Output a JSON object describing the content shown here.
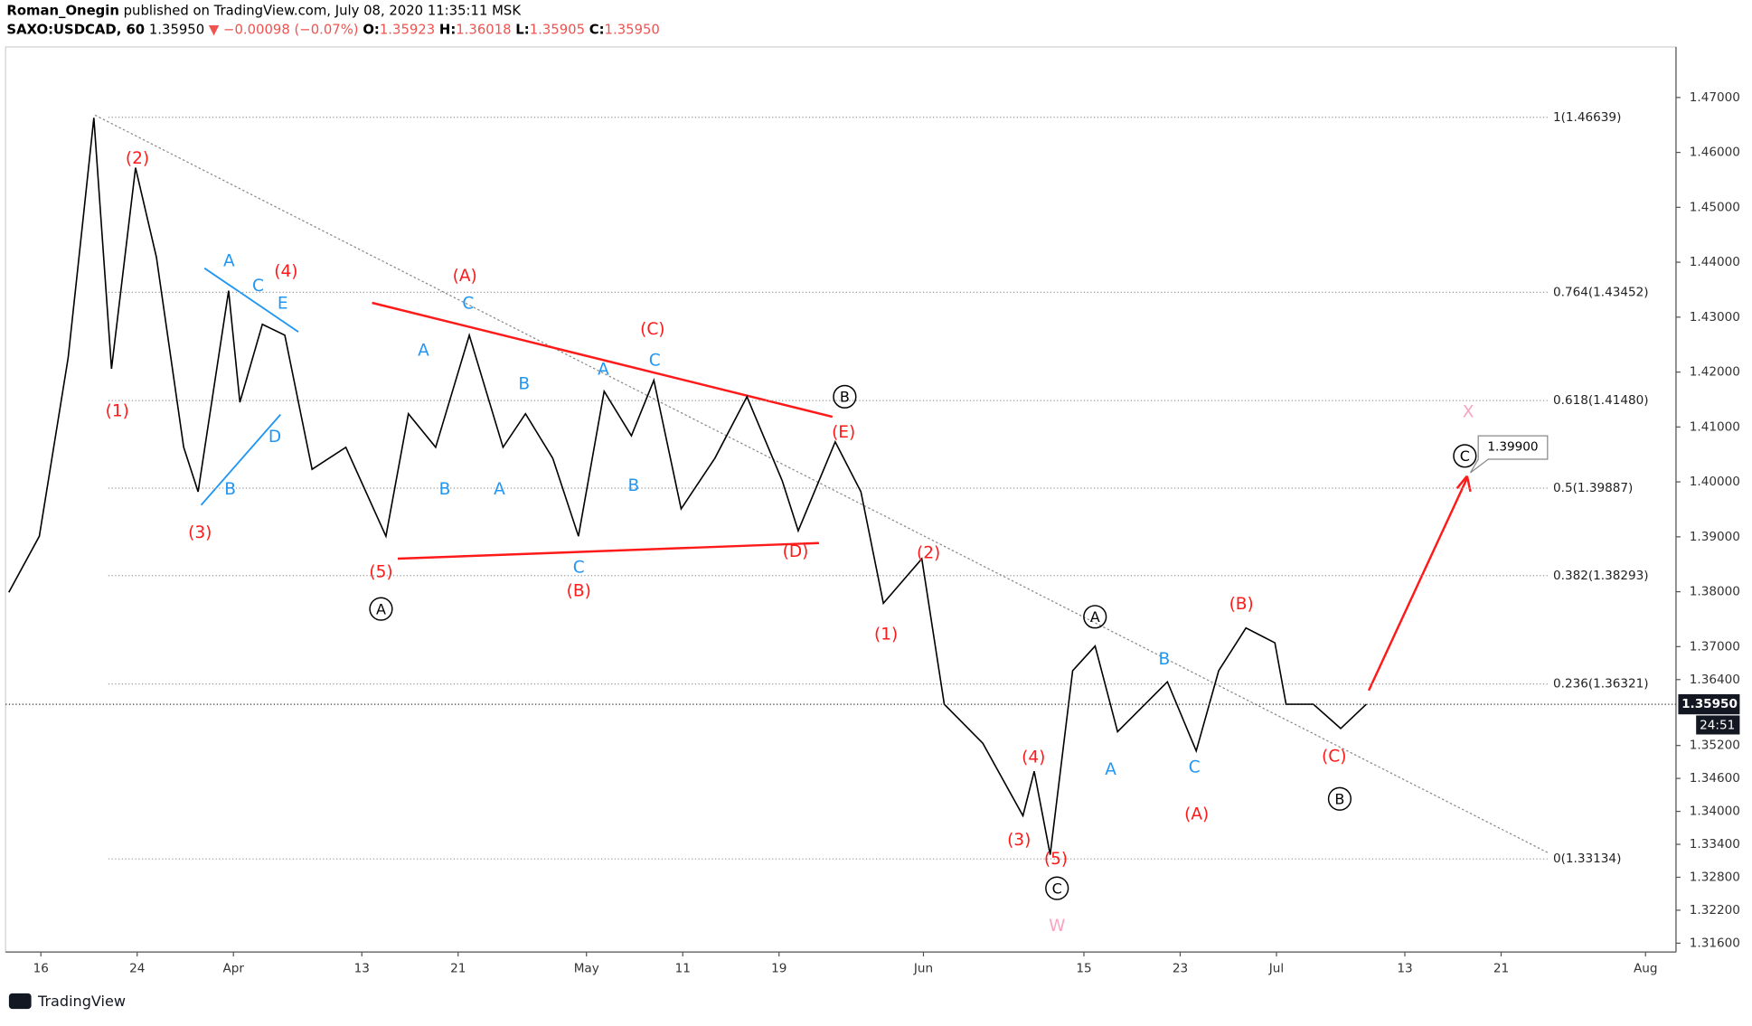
{
  "header": {
    "author": "Roman_Onegin",
    "published": " published on TradingView.com, July 08, 2020 11:35:11 MSK",
    "symbol": "SAXO:USDCAD, 60",
    "last": "1.35950",
    "change": "▼ −0.00098 (−0.07%)",
    "ohlc": [
      {
        "label": "O:",
        "value": "1.35923"
      },
      {
        "label": "H:",
        "value": "1.36018"
      },
      {
        "label": "L:",
        "value": "1.35905"
      },
      {
        "label": "C:",
        "value": "1.35950"
      }
    ]
  },
  "chart_data": {
    "type": "line",
    "color": "#000000",
    "x": [
      -2.0,
      -0.1,
      1.7,
      2.6,
      3.3,
      4.4,
      5.9,
      7.2,
      8.9,
      9.8,
      11.7,
      12.4,
      13.8,
      15.2,
      16.9,
      19.0,
      21.5,
      22.9,
      24.6,
      26.7,
      28.8,
      30.2,
      31.9,
      33.5,
      35.1,
      36.8,
      38.2,
      39.9,
      42.0,
      44.0,
      46.2,
      47.2,
      49.5,
      51.1,
      52.5,
      54.9,
      56.3,
      58.7,
      61.2,
      61.9,
      62.9,
      64.3,
      65.7,
      67.1,
      70.2,
      72.0,
      73.4,
      75.1,
      76.9,
      77.6,
      79.3,
      81.0,
      82.6
    ],
    "values": [
      1.3799,
      1.3901,
      1.4226,
      1.447,
      1.4663,
      1.4206,
      1.4572,
      1.4409,
      1.4063,
      1.3982,
      1.4348,
      1.4145,
      1.4287,
      1.4267,
      1.4023,
      1.4063,
      1.3901,
      1.4124,
      1.4063,
      1.4267,
      1.4063,
      1.4124,
      1.4043,
      1.3901,
      1.4165,
      1.4084,
      1.4185,
      1.3951,
      1.4043,
      1.4155,
      1.4002,
      1.3911,
      1.4073,
      1.3982,
      1.3779,
      1.386,
      1.3595,
      1.3524,
      1.3392,
      1.3473,
      1.3321,
      1.3656,
      1.3701,
      1.3545,
      1.3636,
      1.351,
      1.3656,
      1.3734,
      1.3707,
      1.3595,
      1.3595,
      1.3551,
      1.3595
    ],
    "xlim": [
      -2.2,
      101.9
    ],
    "xticks": [
      {
        "value": 0,
        "label": "16"
      },
      {
        "value": 6,
        "label": "24"
      },
      {
        "value": 12,
        "label": "Apr"
      },
      {
        "value": 20,
        "label": "13"
      },
      {
        "value": 26,
        "label": "21"
      },
      {
        "value": 34,
        "label": "May"
      },
      {
        "value": 40,
        "label": "11"
      },
      {
        "value": 46,
        "label": "19"
      },
      {
        "value": 55,
        "label": "Jun"
      },
      {
        "value": 65,
        "label": "15"
      },
      {
        "value": 71,
        "label": "23"
      },
      {
        "value": 77,
        "label": "Jul"
      },
      {
        "value": 85,
        "label": "13"
      },
      {
        "value": 91,
        "label": "21"
      },
      {
        "value": 100,
        "label": "Aug"
      }
    ],
    "ylim": [
      1.3144,
      1.4792
    ],
    "yticks": [
      {
        "value": 1.47,
        "label": "1.47000"
      },
      {
        "value": 1.46,
        "label": "1.46000"
      },
      {
        "value": 1.45,
        "label": "1.45000"
      },
      {
        "value": 1.44,
        "label": "1.44000"
      },
      {
        "value": 1.43,
        "label": "1.43000"
      },
      {
        "value": 1.42,
        "label": "1.42000"
      },
      {
        "value": 1.41,
        "label": "1.41000"
      },
      {
        "value": 1.4,
        "label": "1.40000"
      },
      {
        "value": 1.39,
        "label": "1.39000"
      },
      {
        "value": 1.38,
        "label": "1.38000"
      },
      {
        "value": 1.37,
        "label": "1.37000"
      },
      {
        "value": 1.364,
        "label": "1.36400"
      },
      {
        "value": 1.352,
        "label": "1.35200"
      },
      {
        "value": 1.346,
        "label": "1.34600"
      },
      {
        "value": 1.34,
        "label": "1.34000"
      },
      {
        "value": 1.334,
        "label": "1.33400"
      },
      {
        "value": 1.328,
        "label": "1.32800"
      },
      {
        "value": 1.322,
        "label": "1.32200"
      },
      {
        "value": 1.316,
        "label": "1.31600"
      }
    ],
    "fib_levels": [
      {
        "value": 1.46639,
        "label": "1(1.46639)"
      },
      {
        "value": 1.43452,
        "label": "0.764(1.43452)"
      },
      {
        "value": 1.4148,
        "label": "0.618(1.41480)"
      },
      {
        "value": 1.39887,
        "label": "0.5(1.39887)"
      },
      {
        "value": 1.38293,
        "label": "0.382(1.38293)"
      },
      {
        "value": 1.36321,
        "label": "0.236(1.36321)"
      },
      {
        "value": 1.33134,
        "label": "0(1.33134)"
      }
    ],
    "price_label": "1.35950",
    "countdown": "24:51",
    "target_label": "1.39900",
    "annotations": [
      {
        "text": "(2)",
        "color": "#ff1a1a"
      },
      {
        "text": "(1)",
        "color": "#ff1a1a"
      },
      {
        "text": "(3)",
        "color": "#ff1a1a"
      },
      {
        "text": "(4)",
        "color": "#ff1a1a"
      },
      {
        "text": "(5)",
        "color": "#ff1a1a"
      },
      {
        "text": "(A)",
        "color": "#ff1a1a"
      },
      {
        "text": "(C)",
        "color": "#ff1a1a"
      },
      {
        "text": "(B)",
        "color": "#ff1a1a"
      },
      {
        "text": "(D)",
        "color": "#ff1a1a"
      },
      {
        "text": "(E)",
        "color": "#ff1a1a"
      },
      {
        "text": "(2)",
        "color": "#ff1a1a"
      },
      {
        "text": "(1)",
        "color": "#ff1a1a"
      },
      {
        "text": "(4)",
        "color": "#ff1a1a"
      },
      {
        "text": "(3)",
        "color": "#ff1a1a"
      },
      {
        "text": "(5)",
        "color": "#ff1a1a"
      },
      {
        "text": "(B)",
        "color": "#ff1a1a"
      },
      {
        "text": "(A)",
        "color": "#ff1a1a"
      },
      {
        "text": "(C)",
        "color": "#ff1a1a"
      },
      {
        "text": "A",
        "color": "#2196f3"
      },
      {
        "text": "C",
        "color": "#2196f3"
      },
      {
        "text": "E",
        "color": "#2196f3"
      },
      {
        "text": "D",
        "color": "#2196f3"
      },
      {
        "text": "B",
        "color": "#2196f3"
      },
      {
        "text": "A",
        "color": "#2196f3"
      },
      {
        "text": "C",
        "color": "#2196f3"
      },
      {
        "text": "B",
        "color": "#2196f3"
      },
      {
        "text": "A",
        "color": "#2196f3"
      },
      {
        "text": "C",
        "color": "#2196f3"
      },
      {
        "text": "B",
        "color": "#2196f3"
      },
      {
        "text": "A",
        "color": "#2196f3"
      },
      {
        "text": "B",
        "color": "#2196f3"
      },
      {
        "text": "C",
        "color": "#2196f3"
      },
      {
        "text": "A",
        "color": "#2196f3"
      },
      {
        "text": "B",
        "color": "#2196f3"
      },
      {
        "text": "C",
        "color": "#2196f3"
      },
      {
        "text": "A",
        "color": "#000000",
        "circled": true
      },
      {
        "text": "B",
        "color": "#000000",
        "circled": true
      },
      {
        "text": "C",
        "color": "#000000",
        "circled": true
      },
      {
        "text": "A",
        "color": "#000000",
        "circled": true
      },
      {
        "text": "B",
        "color": "#000000",
        "circled": true
      },
      {
        "text": "C",
        "color": "#000000",
        "circled": true
      },
      {
        "text": "W",
        "color": "#f8a5c2"
      },
      {
        "text": "X",
        "color": "#f8a5c2"
      }
    ]
  },
  "footer": {
    "brand": "TradingView"
  }
}
